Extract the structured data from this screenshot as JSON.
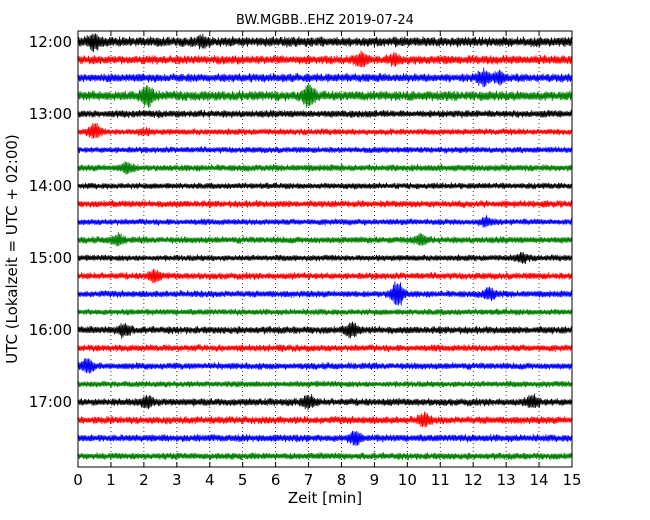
{
  "chart_data": {
    "type": "line",
    "title": "BW.MGBB..EHZ 2019-07-24",
    "xlabel": "Zeit  [min]",
    "ylabel": "UTC (Lokalzeit = UTC + 02:00)",
    "xlim": [
      0,
      15
    ],
    "ylim_rows": [
      -0.6,
      23.6
    ],
    "x_ticks": [
      "0",
      "1",
      "2",
      "3",
      "4",
      "5",
      "6",
      "7",
      "8",
      "9",
      "10",
      "11",
      "12",
      "13",
      "14",
      "15"
    ],
    "y_ticks": [
      {
        "label": "12:00",
        "row": 0
      },
      {
        "label": "13:00",
        "row": 4
      },
      {
        "label": "14:00",
        "row": 8
      },
      {
        "label": "15:00",
        "row": 12
      },
      {
        "label": "16:00",
        "row": 16
      },
      {
        "label": "17:00",
        "row": 20
      }
    ],
    "grid": "vertical dotted at each minute",
    "trace_colors": [
      "#000000",
      "#ff0000",
      "#0000ff",
      "#008000"
    ],
    "series": [
      {
        "start": "12:00",
        "color": "#000000",
        "amplitude": 0.3,
        "events": [
          [
            0.5,
            0.35
          ],
          [
            3.8,
            0.22
          ]
        ]
      },
      {
        "start": "12:15",
        "color": "#ff0000",
        "amplitude": 0.26,
        "events": [
          [
            8.6,
            0.28
          ],
          [
            9.6,
            0.18
          ]
        ]
      },
      {
        "start": "12:30",
        "color": "#0000ff",
        "amplitude": 0.26,
        "events": [
          [
            12.3,
            0.32
          ],
          [
            12.8,
            0.22
          ]
        ]
      },
      {
        "start": "12:45",
        "color": "#008000",
        "amplitude": 0.3,
        "events": [
          [
            2.1,
            0.48
          ],
          [
            7.0,
            0.45
          ]
        ]
      },
      {
        "start": "13:00",
        "color": "#000000",
        "amplitude": 0.22,
        "events": []
      },
      {
        "start": "13:15",
        "color": "#ff0000",
        "amplitude": 0.18,
        "events": [
          [
            0.5,
            0.38
          ],
          [
            2.0,
            0.12
          ]
        ]
      },
      {
        "start": "13:30",
        "color": "#0000ff",
        "amplitude": 0.18,
        "events": []
      },
      {
        "start": "13:45",
        "color": "#008000",
        "amplitude": 0.2,
        "events": [
          [
            1.5,
            0.24
          ]
        ]
      },
      {
        "start": "14:00",
        "color": "#000000",
        "amplitude": 0.18,
        "events": []
      },
      {
        "start": "14:15",
        "color": "#ff0000",
        "amplitude": 0.2,
        "events": []
      },
      {
        "start": "14:30",
        "color": "#0000ff",
        "amplitude": 0.18,
        "events": [
          [
            12.4,
            0.18
          ]
        ]
      },
      {
        "start": "14:45",
        "color": "#008000",
        "amplitude": 0.2,
        "events": [
          [
            1.2,
            0.24
          ],
          [
            10.4,
            0.22
          ]
        ]
      },
      {
        "start": "15:00",
        "color": "#000000",
        "amplitude": 0.18,
        "events": [
          [
            13.5,
            0.2
          ]
        ]
      },
      {
        "start": "15:15",
        "color": "#ff0000",
        "amplitude": 0.2,
        "events": [
          [
            2.3,
            0.26
          ]
        ]
      },
      {
        "start": "15:30",
        "color": "#0000ff",
        "amplitude": 0.2,
        "events": [
          [
            9.7,
            0.7
          ],
          [
            12.5,
            0.26
          ]
        ]
      },
      {
        "start": "15:45",
        "color": "#008000",
        "amplitude": 0.18,
        "events": []
      },
      {
        "start": "16:00",
        "color": "#000000",
        "amplitude": 0.22,
        "events": [
          [
            1.4,
            0.3
          ],
          [
            8.3,
            0.32
          ]
        ]
      },
      {
        "start": "16:15",
        "color": "#ff0000",
        "amplitude": 0.2,
        "events": []
      },
      {
        "start": "16:30",
        "color": "#0000ff",
        "amplitude": 0.2,
        "events": [
          [
            0.3,
            0.3
          ]
        ]
      },
      {
        "start": "16:45",
        "color": "#008000",
        "amplitude": 0.18,
        "events": []
      },
      {
        "start": "17:00",
        "color": "#000000",
        "amplitude": 0.22,
        "events": [
          [
            2.1,
            0.26
          ],
          [
            13.8,
            0.3
          ],
          [
            7.0,
            0.3
          ]
        ]
      },
      {
        "start": "17:15",
        "color": "#ff0000",
        "amplitude": 0.22,
        "events": [
          [
            10.5,
            0.28
          ]
        ]
      },
      {
        "start": "17:30",
        "color": "#0000ff",
        "amplitude": 0.22,
        "events": [
          [
            8.4,
            0.28
          ]
        ]
      },
      {
        "start": "17:45",
        "color": "#008000",
        "amplitude": 0.2,
        "events": []
      }
    ]
  }
}
